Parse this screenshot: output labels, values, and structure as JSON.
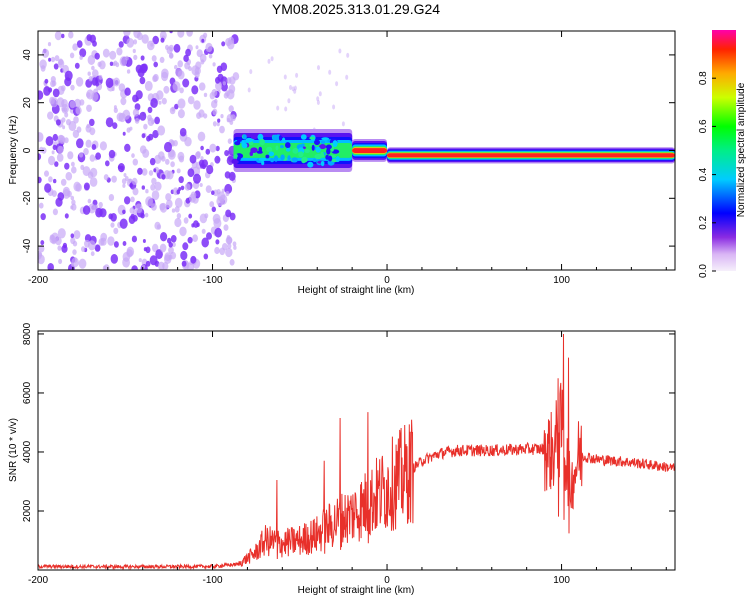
{
  "title": "YM08.2025.313.01.29.G24",
  "colors": {
    "snr_line": "#e8302a",
    "scatter": "#7b2ff7",
    "scatter_light": "#c8a8f7",
    "axis": "#000000"
  },
  "chart_data": [
    {
      "type": "heatmap",
      "name": "spectrogram",
      "xlabel": "Height of straight line (km)",
      "ylabel": "Frequency (Hz)",
      "xlim": [
        -200,
        165
      ],
      "ylim": [
        -50,
        50
      ],
      "xticks": [
        -200,
        -100,
        0,
        100
      ],
      "yticks": [
        -40,
        -20,
        0,
        20,
        40
      ],
      "colorbar": {
        "label": "Normalized spectral amplitude",
        "range": [
          0.0,
          1.0
        ],
        "ticks": [
          0.0,
          0.2,
          0.4,
          0.6,
          0.8
        ]
      },
      "noise_region_x": [
        -200,
        -86
      ],
      "signal_segments": [
        {
          "x0": -88,
          "x1": -20,
          "freq_center": 0,
          "freq_halfwidth": 6,
          "level": 0.35
        },
        {
          "x0": -20,
          "x1": 0,
          "freq_center": 0,
          "freq_halfwidth": 3,
          "level": 0.7
        },
        {
          "x0": 0,
          "x1": 165,
          "freq_center": -2,
          "freq_halfwidth": 2,
          "level": 0.95
        }
      ]
    },
    {
      "type": "line",
      "name": "snr",
      "xlabel": "Height of straight line (km)",
      "ylabel": "SNR (10 * v/v)",
      "xlim": [
        -200,
        165
      ],
      "ylim": [
        0,
        8100
      ],
      "xticks": [
        -200,
        -100,
        0,
        100
      ],
      "yticks": [
        2000,
        4000,
        6000,
        8000
      ],
      "series": [
        {
          "name": "SNR",
          "x": [
            -200,
            -150,
            -100,
            -85,
            -75,
            -70,
            -60,
            -50,
            -40,
            -30,
            -20,
            -10,
            0,
            10,
            20,
            30,
            40,
            60,
            80,
            90,
            95,
            100,
            105,
            110,
            120,
            140,
            165
          ],
          "y": [
            120,
            110,
            120,
            200,
            600,
            1000,
            900,
            1000,
            1200,
            1600,
            1900,
            2300,
            2800,
            3200,
            3700,
            3950,
            4050,
            4050,
            4100,
            4100,
            4000,
            4800,
            2800,
            3900,
            3750,
            3650,
            3450
          ]
        }
      ],
      "spikes": [
        {
          "x": -63,
          "y": 3050
        },
        {
          "x": -36,
          "y": 3700
        },
        {
          "x": -27,
          "y": 5150
        },
        {
          "x": -11,
          "y": 5350
        },
        {
          "x": 98,
          "y": 6500
        },
        {
          "x": 101,
          "y": 8000
        },
        {
          "x": 104,
          "y": 7200
        }
      ]
    }
  ]
}
